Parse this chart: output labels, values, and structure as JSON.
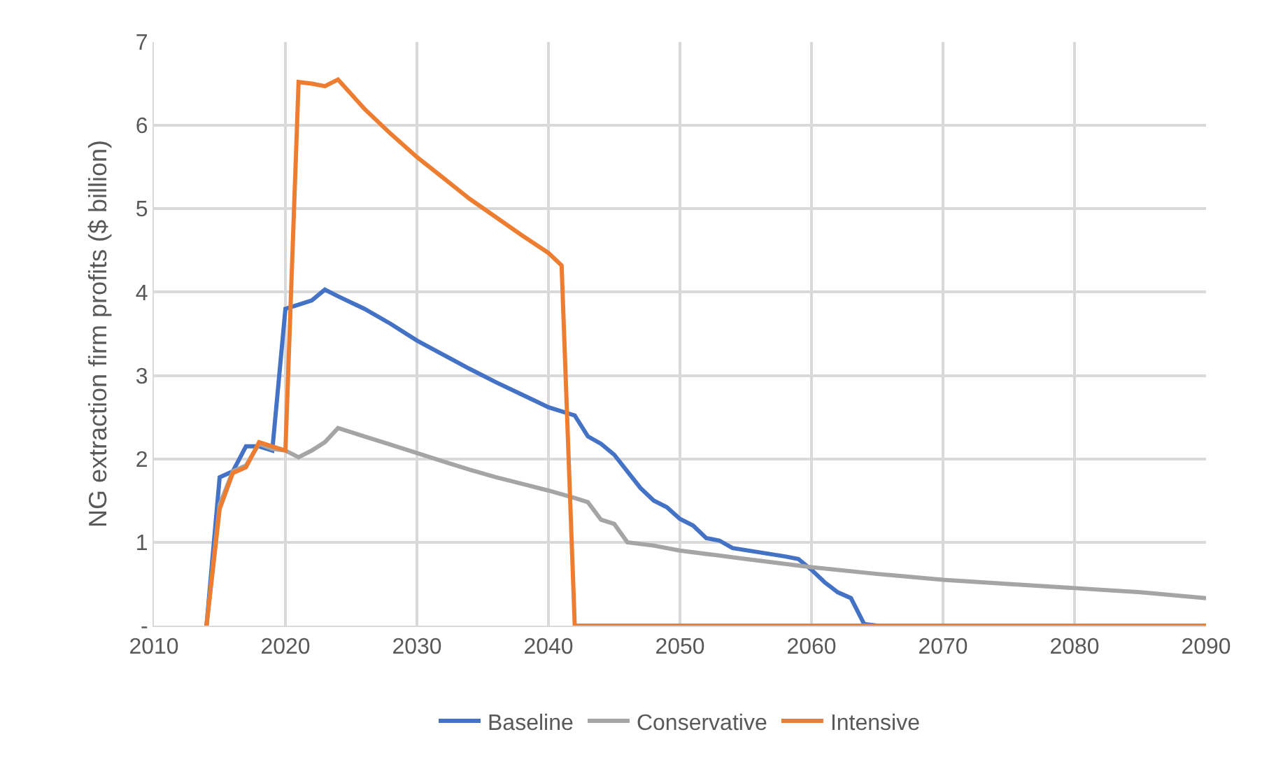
{
  "chart_data": {
    "type": "line",
    "ylabel": "NG extraction firm profits ($ billion)",
    "xlim": [
      2010,
      2090
    ],
    "xticks": [
      2010,
      2020,
      2030,
      2040,
      2050,
      2060,
      2070,
      2080,
      2090
    ],
    "ylim": [
      0,
      7
    ],
    "yticks": [
      {
        "value": 0,
        "label": "-"
      },
      1,
      2,
      3,
      4,
      5,
      6,
      7
    ],
    "grid": true,
    "legend": "bottom",
    "marker": "none",
    "line_style": "solid",
    "series": [
      {
        "name": "Baseline",
        "color": "#4472c4",
        "x": [
          2014,
          2015,
          2016,
          2017,
          2018,
          2019,
          2020,
          2021,
          2022,
          2023,
          2024,
          2026,
          2028,
          2030,
          2032,
          2034,
          2036,
          2038,
          2040,
          2042,
          2043,
          2044,
          2045,
          2046,
          2047,
          2048,
          2049,
          2050,
          2051,
          2052,
          2053,
          2054,
          2056,
          2058,
          2059,
          2060,
          2061,
          2062,
          2063,
          2064,
          2065,
          2090
        ],
        "values": [
          0,
          1.78,
          1.85,
          2.15,
          2.15,
          2.1,
          3.8,
          3.85,
          3.9,
          4.03,
          3.95,
          3.8,
          3.62,
          3.42,
          3.25,
          3.08,
          2.92,
          2.77,
          2.62,
          2.52,
          2.27,
          2.18,
          2.05,
          1.85,
          1.65,
          1.5,
          1.42,
          1.28,
          1.2,
          1.05,
          1.02,
          0.93,
          0.88,
          0.83,
          0.8,
          0.67,
          0.52,
          0.4,
          0.33,
          0.02,
          0,
          0
        ]
      },
      {
        "name": "Conservative",
        "color": "#a5a5a5",
        "x": [
          2014,
          2015,
          2016,
          2017,
          2018,
          2019,
          2020,
          2021,
          2022,
          2023,
          2024,
          2026,
          2028,
          2030,
          2032,
          2034,
          2036,
          2038,
          2040,
          2042,
          2043,
          2044,
          2045,
          2046,
          2048,
          2050,
          2055,
          2060,
          2065,
          2070,
          2075,
          2080,
          2085,
          2090
        ],
        "values": [
          0,
          1.45,
          1.85,
          1.92,
          2.18,
          2.12,
          2.1,
          2.02,
          2.1,
          2.2,
          2.37,
          2.27,
          2.17,
          2.07,
          1.97,
          1.87,
          1.78,
          1.7,
          1.62,
          1.53,
          1.48,
          1.27,
          1.22,
          1.0,
          0.96,
          0.9,
          0.8,
          0.7,
          0.62,
          0.55,
          0.5,
          0.45,
          0.4,
          0.33
        ]
      },
      {
        "name": "Intensive",
        "color": "#ed7d31",
        "x": [
          2014,
          2015,
          2016,
          2017,
          2018,
          2019,
          2020,
          2021,
          2022,
          2023,
          2024,
          2026,
          2028,
          2030,
          2032,
          2034,
          2036,
          2038,
          2040,
          2041,
          2042,
          2090
        ],
        "values": [
          0,
          1.4,
          1.83,
          1.9,
          2.2,
          2.15,
          2.1,
          6.52,
          6.5,
          6.47,
          6.55,
          6.2,
          5.9,
          5.62,
          5.37,
          5.12,
          4.9,
          4.68,
          4.47,
          4.32,
          0,
          0
        ]
      }
    ]
  }
}
